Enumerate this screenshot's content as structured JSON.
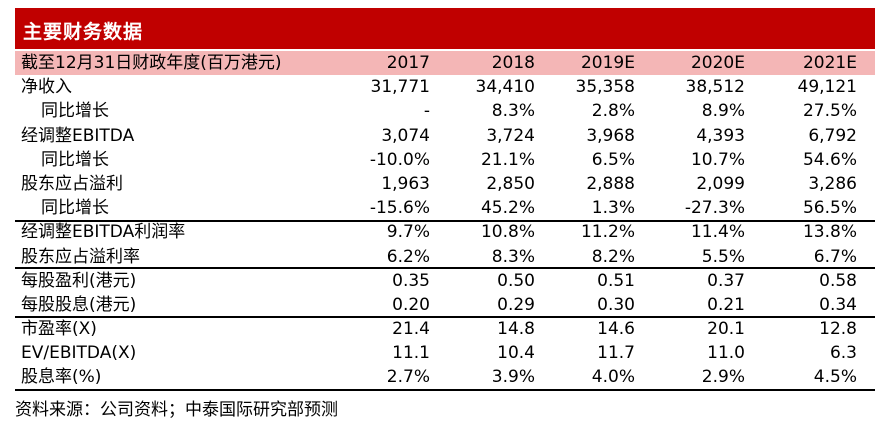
{
  "title": "主要财务数据",
  "header": {
    "label": "截至12月31日财政年度(百万港元)",
    "years": [
      "2017",
      "2018",
      "2019E",
      "2020E",
      "2021E"
    ]
  },
  "rows": [
    {
      "label": "净收入",
      "indent": false,
      "values": [
        "31,771",
        "34,410",
        "35,358",
        "38,512",
        "49,121"
      ]
    },
    {
      "label": "同比增长",
      "indent": true,
      "values": [
        "-",
        "8.3%",
        "2.8%",
        "8.9%",
        "27.5%"
      ]
    },
    {
      "label": "经调整EBITDA",
      "indent": false,
      "values": [
        "3,074",
        "3,724",
        "3,968",
        "4,393",
        "6,792"
      ]
    },
    {
      "label": "同比增长",
      "indent": true,
      "values": [
        "-10.0%",
        "21.1%",
        "6.5%",
        "10.7%",
        "54.6%"
      ]
    },
    {
      "label": "股东应占溢利",
      "indent": false,
      "values": [
        "1,963",
        "2,850",
        "2,888",
        "2,099",
        "3,286"
      ]
    },
    {
      "label": "同比增长",
      "indent": true,
      "values": [
        "-15.6%",
        "45.2%",
        "1.3%",
        "-27.3%",
        "56.5%"
      ]
    },
    {
      "label": "经调整EBITDA利润率",
      "indent": false,
      "values": [
        "9.7%",
        "10.8%",
        "11.2%",
        "11.4%",
        "13.8%"
      ]
    },
    {
      "label": "股东应占溢利率",
      "indent": false,
      "values": [
        "6.2%",
        "8.3%",
        "8.2%",
        "5.5%",
        "6.7%"
      ]
    },
    {
      "label": "每股盈利(港元)",
      "indent": false,
      "values": [
        "0.35",
        "0.50",
        "0.51",
        "0.37",
        "0.58"
      ]
    },
    {
      "label": "每股股息(港元)",
      "indent": false,
      "values": [
        "0.20",
        "0.29",
        "0.30",
        "0.21",
        "0.34"
      ]
    },
    {
      "label": "市盈率(X)",
      "indent": false,
      "values": [
        "21.4",
        "14.8",
        "14.6",
        "20.1",
        "12.8"
      ]
    },
    {
      "label": "EV/EBITDA(X)",
      "indent": false,
      "values": [
        "11.1",
        "10.4",
        "11.7",
        "11.0",
        "6.3"
      ]
    },
    {
      "label": "股息率(%)",
      "indent": false,
      "values": [
        "2.7%",
        "3.9%",
        "4.0%",
        "2.9%",
        "4.5%"
      ]
    }
  ],
  "footnote": "资料来源：公司资料；中泰国际研究部预测",
  "colors": {
    "title_bg": "#c00000",
    "header_bg": "#f4b6b6"
  }
}
